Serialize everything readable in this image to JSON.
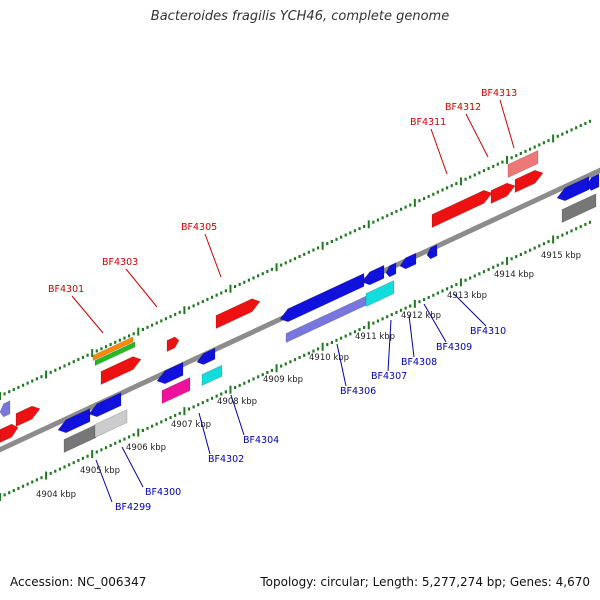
{
  "title": "Bacteroides fragilis YCH46, complete genome",
  "footer": {
    "accession": "Accession: NC_006347",
    "summary": "Topology: circular; Length: 5,277,274 bp; Genes: 4,670"
  },
  "colors": {
    "backbone": "#8c8c8c",
    "ticks": "#1f7a1f",
    "top_labels": "#cc0000",
    "bottom_labels": "#0000aa",
    "red": "#ee1111",
    "blue": "#1111dd",
    "gray": "#777777",
    "cyan": "#11dddd",
    "pink": "#ee1199",
    "orange": "#ff8800",
    "green": "#22bb22",
    "light_red": "#ee7777",
    "light_gray": "#cccccc",
    "lavender": "#7777dd"
  },
  "scale_labels": [
    "4904 kbp",
    "4905 kbp",
    "4906 kbp",
    "4907 kbp",
    "4908 kbp",
    "4909 kbp",
    "4910 kbp",
    "4911 kbp",
    "4912 kbp",
    "4913 kbp",
    "4914 kbp",
    "4915 kbp"
  ],
  "top_gene_labels": [
    "BF4301",
    "BF4303",
    "BF4305",
    "BF4311",
    "BF4312",
    "BF4313"
  ],
  "bottom_gene_labels": [
    "BF4299",
    "BF4300",
    "BF4302",
    "BF4304",
    "BF4306",
    "BF4307",
    "BF4308",
    "BF4309",
    "BF4310"
  ]
}
